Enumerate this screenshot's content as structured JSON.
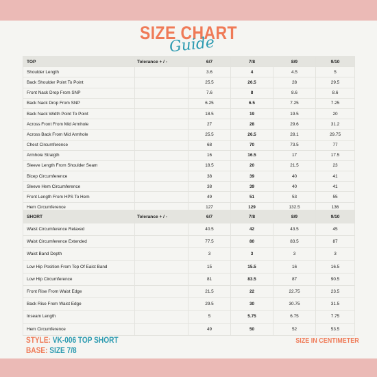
{
  "title": {
    "main": "SIZE CHART",
    "script": "Guide"
  },
  "top_table": {
    "headers": [
      "TOP",
      "Tolerance + / -",
      "6/7",
      "7/8",
      "8/9",
      "9/10"
    ],
    "rows": [
      [
        "Shoulder Length",
        "",
        "3.6",
        "4",
        "4.5",
        "5"
      ],
      [
        "Back Shoulder Point To Point",
        "",
        "25.5",
        "26.5",
        "28",
        "29.5"
      ],
      [
        "Front Nack Drop From SNP",
        "",
        "7.6",
        "8",
        "8.6",
        "8.6"
      ],
      [
        "Back Nack Drop From SNP",
        "",
        "6.25",
        "6.5",
        "7.25",
        "7.25"
      ],
      [
        "Back Nack Width Point To Point",
        "",
        "18.5",
        "19",
        "19.5",
        "20"
      ],
      [
        "Across Front From Mid Armhole",
        "",
        "27",
        "28",
        "29.6",
        "31.2"
      ],
      [
        "Across Back From Mid Armhole",
        "",
        "25.5",
        "26.5",
        "28.1",
        "29.75"
      ],
      [
        "Chest Circumference",
        "",
        "68",
        "70",
        "73.5",
        "77"
      ],
      [
        "Armhole Straigth",
        "",
        "16",
        "16.5",
        "17",
        "17.5"
      ],
      [
        "Sleeve Length From Shoulder Seam",
        "",
        "18.5",
        "20",
        "21.5",
        "23"
      ],
      [
        "Bicep Circumference",
        "",
        "38",
        "39",
        "40",
        "41"
      ],
      [
        "Sleeve Hem Circumference",
        "",
        "38",
        "39",
        "40",
        "41"
      ],
      [
        "Front Length From HPS To Hem",
        "",
        "49",
        "51",
        "53",
        "55"
      ],
      [
        "Hem Circumference",
        "",
        "127",
        "129",
        "132.5",
        "136"
      ]
    ]
  },
  "short_table": {
    "headers": [
      "SHORT",
      "Tolerance + / -",
      "6/7",
      "7/8",
      "8/9",
      "9/10"
    ],
    "rows": [
      [
        "Waist Circumference Relaxed",
        "",
        "40.5",
        "42",
        "43.5",
        "45"
      ],
      [
        "Waist Circumference Extended",
        "",
        "77.5",
        "80",
        "83.5",
        "87"
      ],
      [
        "Waist Band Depth",
        "",
        "3",
        "3",
        "3",
        "3"
      ],
      [
        "Low Hip Position From Top Of Eaist Band",
        "",
        "15",
        "15.5",
        "16",
        "16.5"
      ],
      [
        "Low Hip Circumference",
        "",
        "81",
        "83.5",
        "87",
        "90.5"
      ],
      [
        "Front Rise From Waist Edge",
        "",
        "21.5",
        "22",
        "22.75",
        "23.5"
      ],
      [
        "Back Rise From Waist Edge",
        "",
        "29.5",
        "30",
        "30.75",
        "31.5"
      ],
      [
        "Inseam Length",
        "",
        "5",
        "5.75",
        "6.75",
        "7.75"
      ],
      [
        "Hem Circumference",
        "",
        "49",
        "50",
        "52",
        "53.5"
      ]
    ]
  },
  "footer": {
    "style_label": "STYLE:",
    "style_value": "VK-006 TOP SHORT",
    "base_label": "BASE:",
    "base_value": "SIZE 7/8",
    "units": "SIZE IN CENTIMETER"
  },
  "colors": {
    "accent_orange": "#ef7a57",
    "accent_teal": "#2b9ab0",
    "band_pink": "#ebbab6",
    "header_gray": "#e4e4df"
  }
}
